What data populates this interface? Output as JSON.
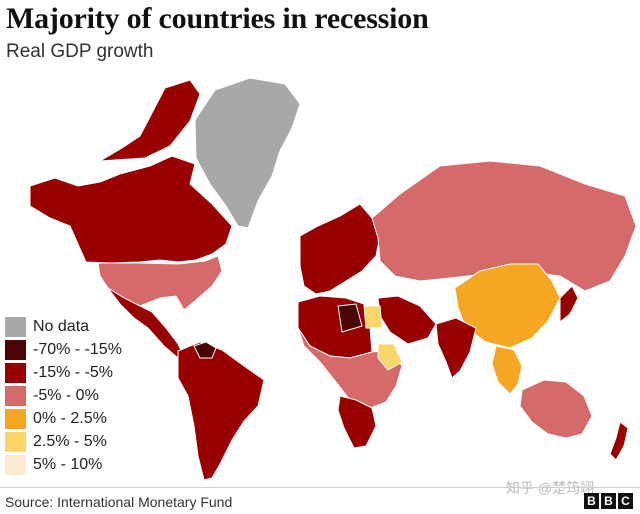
{
  "header": {
    "title": "Majority of countries in recession",
    "subtitle": "Real GDP growth"
  },
  "legend": {
    "items": [
      {
        "label": "No data",
        "color": "#a8a8a8"
      },
      {
        "label": "-70% - -15%",
        "color": "#4a0404"
      },
      {
        "label": "-15% - -5%",
        "color": "#990000"
      },
      {
        "label": "-5% - 0%",
        "color": "#d46a6a"
      },
      {
        "label": "0% - 2.5%",
        "color": "#f5a623"
      },
      {
        "label": "2.5% - 5%",
        "color": "#f9d56a"
      },
      {
        "label": "5% - 10%",
        "color": "#fbebd0"
      }
    ]
  },
  "map": {
    "regions": [
      {
        "name": "greenland",
        "category": "No data"
      },
      {
        "name": "canada-alaska",
        "category": "-15% - -5%"
      },
      {
        "name": "usa",
        "category": "-5% - 0%"
      },
      {
        "name": "mexico-central-america",
        "category": "-15% - -5%"
      },
      {
        "name": "south-america",
        "category": "-15% - -5%"
      },
      {
        "name": "venezuela",
        "category": "-70% - -15%"
      },
      {
        "name": "europe",
        "category": "-15% - -5%"
      },
      {
        "name": "russia-central-asia",
        "category": "-5% - 0%"
      },
      {
        "name": "china",
        "category": "0% - 2.5%"
      },
      {
        "name": "north-africa",
        "category": "-15% - -5%"
      },
      {
        "name": "libya",
        "category": "-70% - -15%"
      },
      {
        "name": "egypt",
        "category": "2.5% - 5%"
      },
      {
        "name": "middle-east",
        "category": "-15% - -5%"
      },
      {
        "name": "india",
        "category": "-15% - -5%"
      },
      {
        "name": "sub-saharan-africa",
        "category": "-5% - 0%"
      },
      {
        "name": "southern-africa",
        "category": "-15% - -5%"
      },
      {
        "name": "ethiopia",
        "category": "2.5% - 5%"
      },
      {
        "name": "southeast-asia",
        "category": "0% - 2.5%"
      },
      {
        "name": "japan",
        "category": "-15% - -5%"
      },
      {
        "name": "australia",
        "category": "-5% - 0%"
      },
      {
        "name": "new-zealand",
        "category": "-15% - -5%"
      }
    ]
  },
  "footer": {
    "source": "Source: International Monetary Fund",
    "watermark": "知乎 @楚筠翊",
    "logo_letters": [
      "B",
      "B",
      "C"
    ]
  }
}
